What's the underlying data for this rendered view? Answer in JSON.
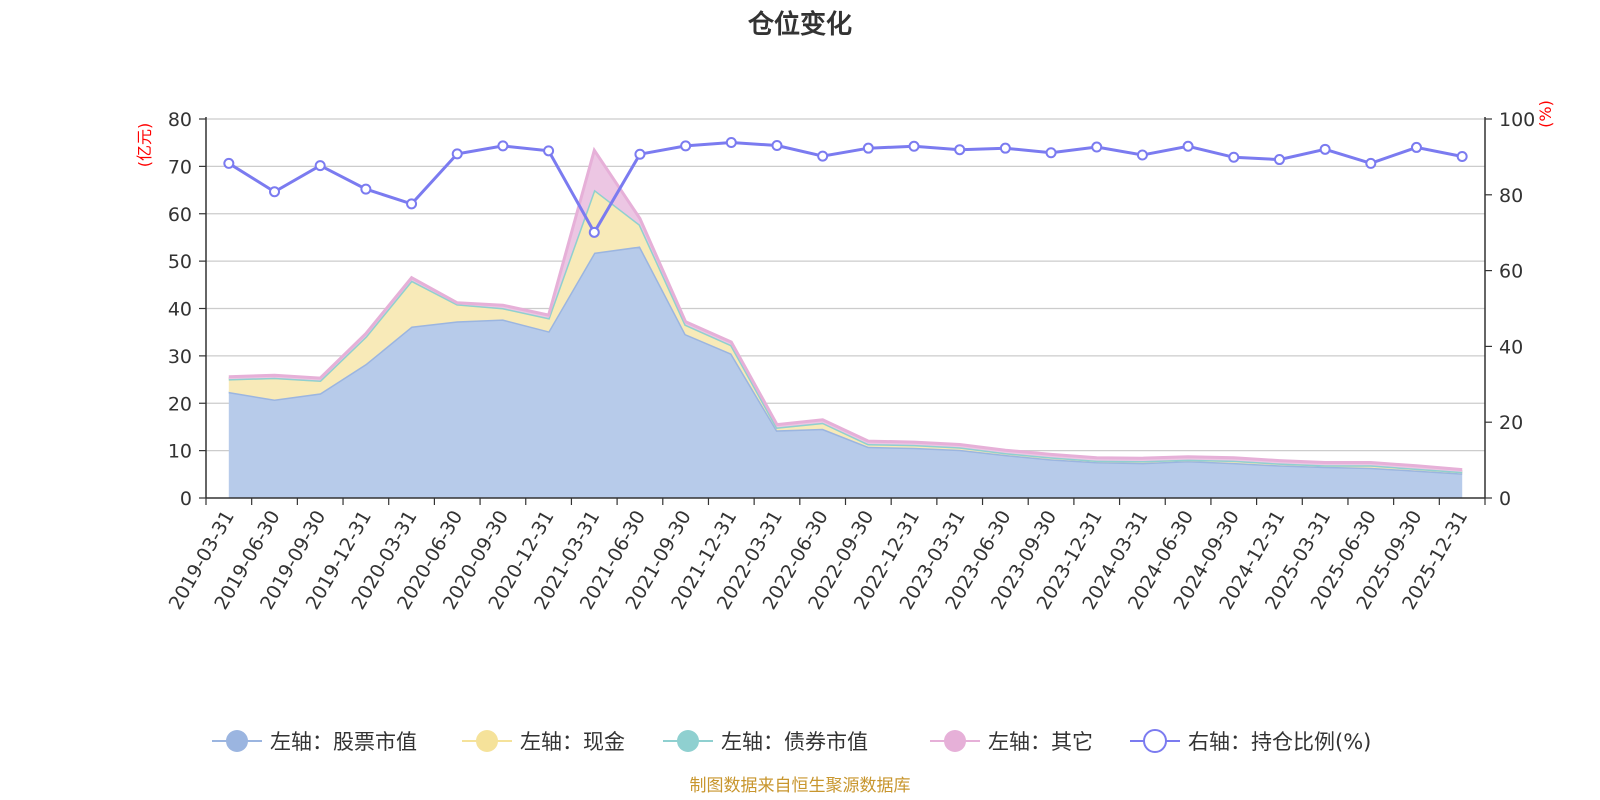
{
  "chart_data": {
    "type": "area",
    "title": "仓位变化",
    "left_axis": {
      "unit": "(亿元)",
      "ylim": [
        0,
        80
      ],
      "ticks": [
        "0",
        "10",
        "20",
        "30",
        "40",
        "50",
        "60",
        "70",
        "80"
      ]
    },
    "right_axis": {
      "unit": "(%)",
      "ylim": [
        0,
        100
      ],
      "ticks": [
        "0",
        "20",
        "40",
        "60",
        "80",
        "100"
      ]
    },
    "categories": [
      "2019-03-31",
      "2019-06-30",
      "2019-09-30",
      "2019-12-31",
      "2020-03-31",
      "2020-06-30",
      "2020-09-30",
      "2020-12-31",
      "2021-03-31",
      "2021-06-30",
      "2021-09-30",
      "2021-12-31",
      "2022-03-31",
      "2022-06-30",
      "2022-09-30",
      "2022-12-31",
      "2023-03-31",
      "2023-06-30",
      "2023-09-30",
      "2023-12-31",
      "2024-03-31",
      "2024-06-30",
      "2024-09-30",
      "2024-12-31",
      "2025-03-31",
      "2025-06-30",
      "2025-09-30",
      "2025-12-31"
    ],
    "series": [
      {
        "name": "左轴：股票市值",
        "axis": "left",
        "color": "#9bb5e0",
        "fill": "#b7cbea",
        "values": [
          22.4,
          20.8,
          22.1,
          28.3,
          36.2,
          37.3,
          37.7,
          35.2,
          51.8,
          53.1,
          34.6,
          30.5,
          14.3,
          14.6,
          10.8,
          10.6,
          10.2,
          9.1,
          8.2,
          7.6,
          7.4,
          7.8,
          7.4,
          6.9,
          6.6,
          6.4,
          5.8,
          5.2
        ]
      },
      {
        "name": "左轴：现金",
        "axis": "left",
        "color": "#f5e29a",
        "fill": "#f8eab8",
        "values": [
          2.7,
          4.6,
          2.7,
          5.8,
          9.7,
          3.6,
          2.4,
          2.8,
          13.3,
          4.6,
          2.0,
          1.8,
          0.6,
          1.3,
          0.6,
          0.6,
          0.5,
          0.4,
          0.4,
          0.3,
          0.4,
          0.3,
          0.5,
          0.4,
          0.3,
          0.5,
          0.4,
          0.3
        ]
      },
      {
        "name": "左轴：债券市值",
        "axis": "left",
        "color": "#8fd0d0",
        "fill": "#bfe5e5",
        "values": [
          0,
          0,
          0,
          0,
          0,
          0,
          0,
          0,
          0,
          0,
          0,
          0,
          0,
          0,
          0,
          0,
          0,
          0,
          0,
          0,
          0,
          0,
          0,
          0,
          0,
          0,
          0,
          0
        ]
      },
      {
        "name": "左轴：其它",
        "axis": "left",
        "color": "#e6b0d8",
        "fill": "#ecc6e3",
        "values": [
          0.5,
          0.5,
          0.5,
          0.6,
          0.6,
          0.3,
          0.6,
          0.6,
          8.3,
          1.3,
          0.6,
          0.6,
          0.6,
          0.6,
          0.6,
          0.6,
          0.6,
          0.6,
          0.6,
          0.6,
          0.6,
          0.6,
          0.6,
          0.6,
          0.6,
          0.6,
          0.6,
          0.5
        ]
      },
      {
        "name": "右轴：持仓比例(%)",
        "axis": "right",
        "color": "#7b7bf0",
        "values": [
          88.3,
          80.8,
          87.7,
          81.5,
          77.6,
          90.8,
          92.9,
          91.6,
          70.1,
          90.7,
          92.9,
          93.8,
          93.0,
          90.2,
          92.3,
          92.8,
          91.9,
          92.3,
          91.1,
          92.6,
          90.5,
          92.8,
          89.9,
          89.3,
          92.0,
          88.3,
          92.5,
          90.1
        ]
      }
    ],
    "grid": true,
    "legend_position": "bottom"
  },
  "source_note": "制图数据来自恒生聚源数据库"
}
